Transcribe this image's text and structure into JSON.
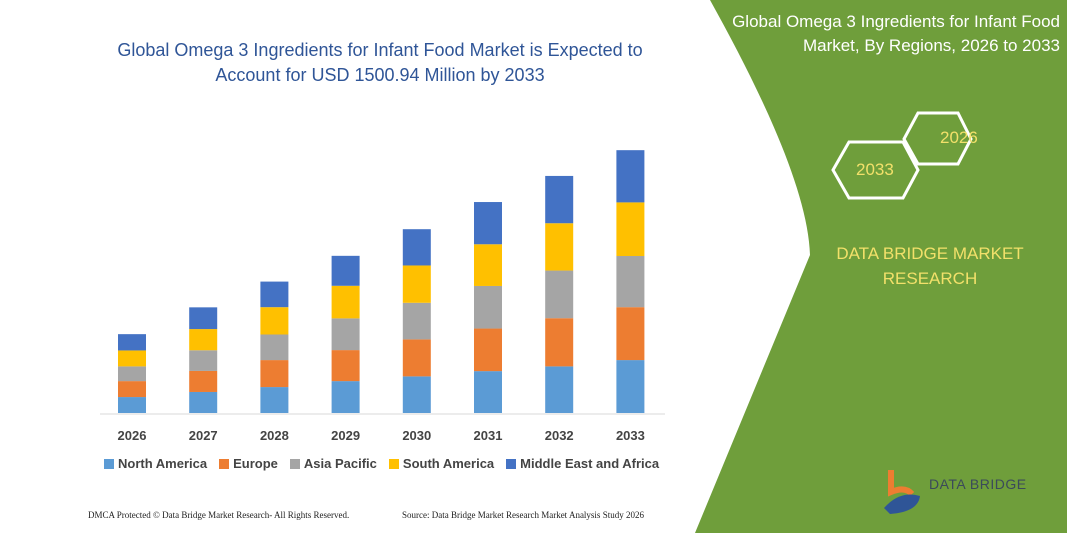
{
  "title": "Global Omega 3 Ingredients for Infant Food Market is Expected to Account for USD 1500.94 Million by 2033",
  "side_title": "Global Omega 3 Ingredients for Infant Food Market, By Regions, 2026 to 2033",
  "hex_labels": [
    "2026",
    "2033"
  ],
  "brand": "DATA BRIDGE MARKET RESEARCH",
  "logo_text": "DATA BRIDGE",
  "footer_left": "DMCA Protected © Data Bridge Market Research-  All Rights Reserved.",
  "footer_right": "Source: Data Bridge Market Research  Market Analysis Study 2026",
  "colors": {
    "panel": "#6f9e3b",
    "accent_text": "#f2e06a",
    "title": "#2f5597"
  },
  "chart_data": {
    "type": "bar",
    "stacked": true,
    "title": "Global Omega 3 Ingredients for Infant Food Market is Expected to Account for USD 1500.94 Million by 2033",
    "categories": [
      "2026",
      "2027",
      "2028",
      "2029",
      "2030",
      "2031",
      "2032",
      "2033"
    ],
    "series": [
      {
        "name": "North America",
        "color": "#5b9bd5",
        "values": [
          91,
          120,
          148,
          182,
          209,
          239,
          266,
          302
        ]
      },
      {
        "name": "Europe",
        "color": "#ed7d31",
        "values": [
          91,
          120,
          154,
          177,
          211,
          243,
          275,
          302
        ]
      },
      {
        "name": "Asia Pacific",
        "color": "#a5a5a5",
        "values": [
          84,
          118,
          146,
          181,
          209,
          243,
          272,
          292
        ]
      },
      {
        "name": "South America",
        "color": "#ffc000",
        "values": [
          91,
          121,
          156,
          186,
          213,
          238,
          270,
          306
        ]
      },
      {
        "name": "Middle East and Africa",
        "color": "#4472c4",
        "values": [
          93,
          124,
          146,
          171,
          207,
          241,
          270,
          298
        ]
      }
    ],
    "grid": false,
    "legend": "bottom"
  }
}
